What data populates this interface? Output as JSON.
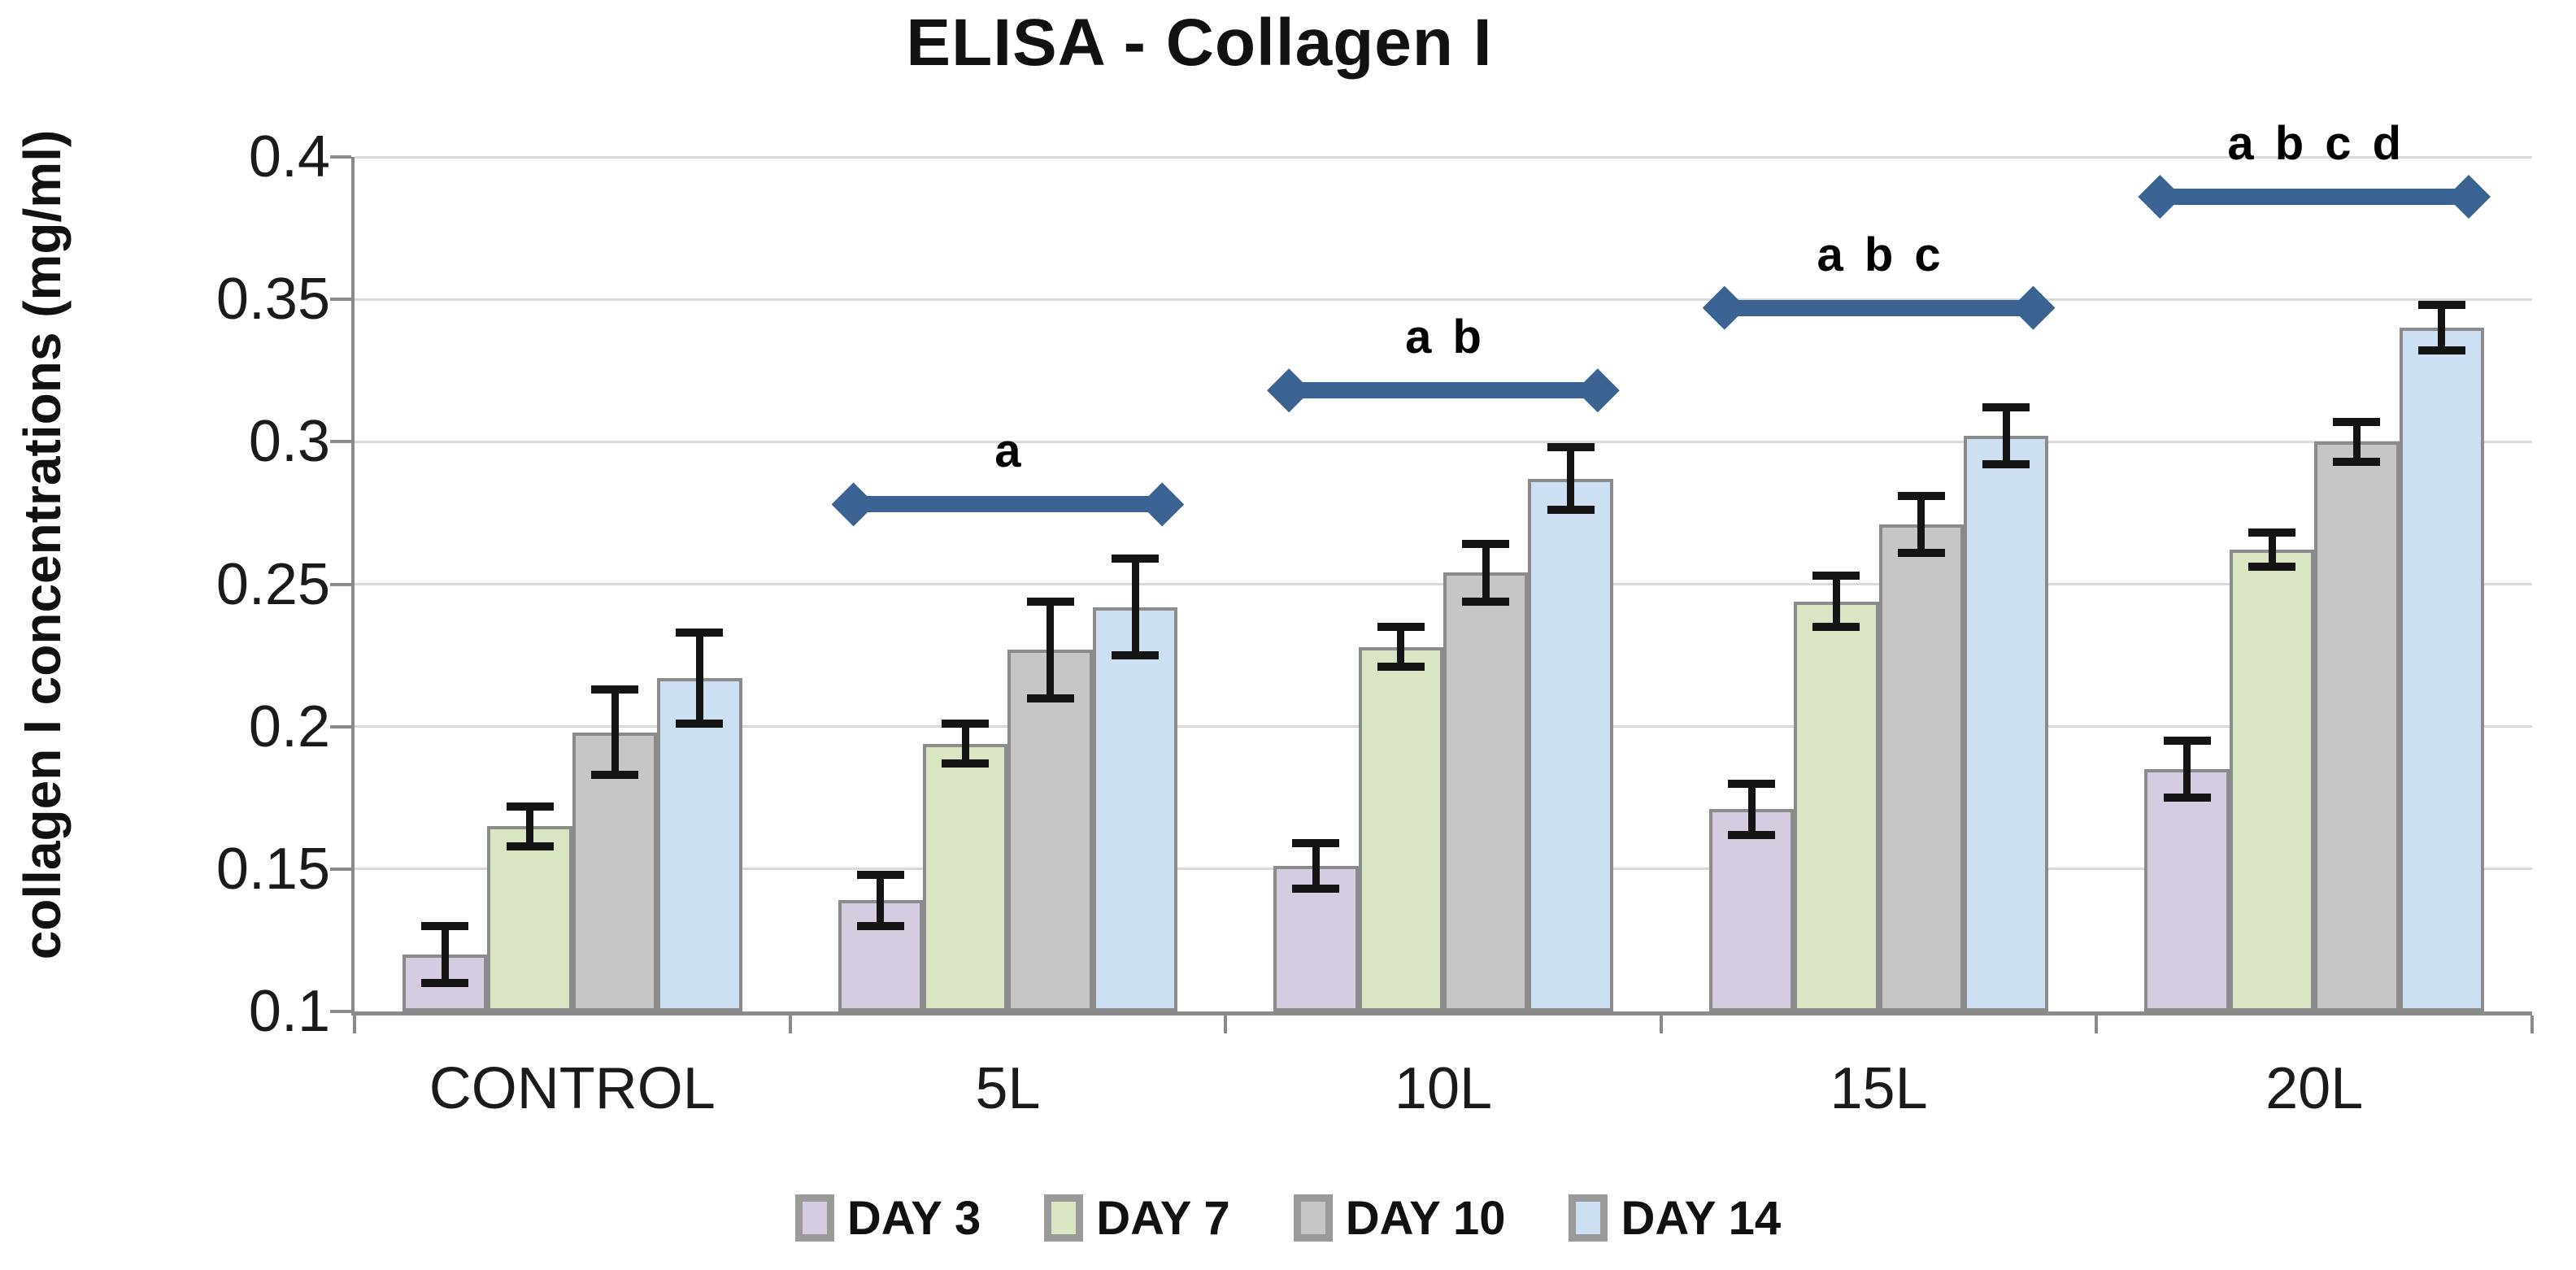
{
  "chart_data": {
    "type": "bar",
    "title": "ELISA - Collagen I",
    "ylabel": "collagen I concentrations (mg/ml)",
    "xlabel": "",
    "ylim": [
      0.1,
      0.4
    ],
    "ytick_step": 0.05,
    "yticks": [
      0.4,
      0.35,
      0.3,
      0.25,
      0.2,
      0.15,
      0.1
    ],
    "ytick_labels": [
      "0.4",
      "0.35",
      "0.3",
      "0.25",
      "0.2",
      "0.15",
      "0.1"
    ],
    "grid": true,
    "legend_position": "bottom",
    "categories": [
      "CONTROL",
      "5L",
      "10L",
      "15L",
      "20L"
    ],
    "series": [
      {
        "name": "DAY 3",
        "color": "#d6cce2",
        "values": [
          0.12,
          0.139,
          0.151,
          0.171,
          0.185
        ],
        "errors": [
          0.01,
          0.009,
          0.008,
          0.009,
          0.01
        ]
      },
      {
        "name": "DAY 7",
        "color": "#dae5c3",
        "values": [
          0.165,
          0.194,
          0.228,
          0.244,
          0.262
        ],
        "errors": [
          0.007,
          0.007,
          0.007,
          0.009,
          0.006
        ]
      },
      {
        "name": "DAY 10",
        "color": "#c7c6c4",
        "values": [
          0.198,
          0.227,
          0.254,
          0.271,
          0.3
        ],
        "errors": [
          0.015,
          0.017,
          0.01,
          0.01,
          0.007
        ]
      },
      {
        "name": "DAY 14",
        "color": "#cde0f3",
        "values": [
          0.217,
          0.242,
          0.287,
          0.302,
          0.34
        ],
        "errors": [
          0.016,
          0.017,
          0.011,
          0.01,
          0.008
        ]
      }
    ],
    "annotations": [
      {
        "category": "5L",
        "label": "a",
        "y": 0.278
      },
      {
        "category": "10L",
        "label": "a b",
        "y": 0.318
      },
      {
        "category": "15L",
        "label": "a b c",
        "y": 0.347
      },
      {
        "category": "20L",
        "label": "a b c d",
        "y": 0.386
      }
    ],
    "annotation_color": "#3a6292",
    "error_bar_color": "#141414",
    "bar_border_color": "#8b8b8b",
    "gridline_color": "#dadada",
    "axis_color": "#8a8a8a"
  }
}
